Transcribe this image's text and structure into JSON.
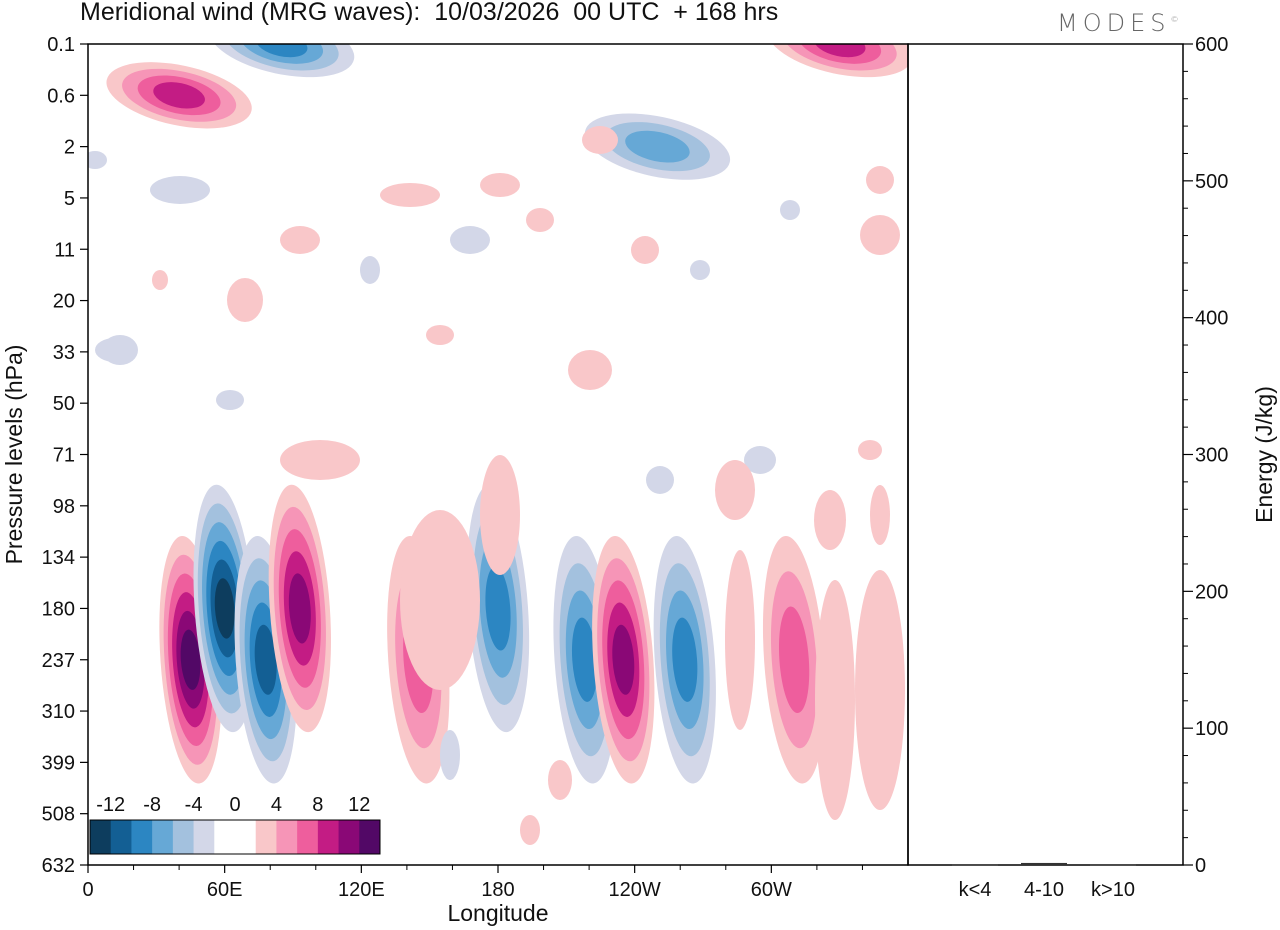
{
  "title": "Meridional wind (MRG waves):  10/03/2026  00 UTC  + 168 hrs",
  "logo": "MODES",
  "logo_mark": "©",
  "colors": {
    "neg": [
      "#0d3d5e",
      "#135f94",
      "#2c86c2",
      "#66a8d6",
      "#a3c1de",
      "#d3d7e8"
    ],
    "zero": "#ffffff",
    "pos": [
      "#f9c7c9",
      "#f695b7",
      "#ee5e9d",
      "#c31c84",
      "#8a0876",
      "#520866"
    ]
  },
  "chart_data": [
    {
      "type": "heatmap",
      "variable": "Meridional wind",
      "xlabel": "Longitude",
      "ylabel": "Pressure levels (hPa)",
      "x_ticks": [
        "0",
        "60E",
        "120E",
        "180",
        "120W",
        "60W"
      ],
      "y_ticks": [
        "0.1",
        "0.6",
        "2",
        "5",
        "11",
        "20",
        "33",
        "50",
        "71",
        "98",
        "134",
        "180",
        "237",
        "310",
        "399",
        "508",
        "632"
      ],
      "colorbar_labels": [
        "-12",
        "-8",
        "-4",
        "0",
        "4",
        "8",
        "12"
      ],
      "levels": [
        -14,
        -12,
        -10,
        -8,
        -6,
        -4,
        -2,
        2,
        4,
        6,
        8,
        10,
        12,
        14
      ],
      "features": [
        {
          "lon": 45,
          "p": "237",
          "value": 12,
          "sign": "pos"
        },
        {
          "lon": 60,
          "p": "180",
          "value": -12,
          "sign": "neg"
        },
        {
          "lon": 78,
          "p": "237",
          "value": -10,
          "sign": "neg"
        },
        {
          "lon": 93,
          "p": "180",
          "value": 10,
          "sign": "pos"
        },
        {
          "lon": 145,
          "p": "237",
          "value": 6,
          "sign": "pos"
        },
        {
          "lon": 180,
          "p": "180",
          "value": -8,
          "sign": "neg"
        },
        {
          "lon": 218,
          "p": "237",
          "value": -8,
          "sign": "neg"
        },
        {
          "lon": 235,
          "p": "237",
          "value": 10,
          "sign": "pos"
        },
        {
          "lon": 262,
          "p": "237",
          "value": -8,
          "sign": "neg"
        },
        {
          "lon": 310,
          "p": "237",
          "value": 6,
          "sign": "pos"
        },
        {
          "lon": 40,
          "p": "0.6",
          "value": 8,
          "sign": "pos"
        },
        {
          "lon": 85,
          "p": "0.1",
          "value": -8,
          "sign": "neg"
        },
        {
          "lon": 250,
          "p": "2",
          "value": -6,
          "sign": "neg"
        },
        {
          "lon": 330,
          "p": "0.1",
          "value": 8,
          "sign": "pos"
        }
      ]
    },
    {
      "type": "bar",
      "ylabel": "Energy (J/kg)",
      "categories": [
        "k<4",
        "4-10",
        "k>10"
      ],
      "values": [
        0.5,
        1.5,
        0.5
      ],
      "ylim": [
        0,
        600
      ],
      "y_ticks": [
        "0",
        "100",
        "200",
        "300",
        "400",
        "500",
        "600"
      ]
    }
  ]
}
